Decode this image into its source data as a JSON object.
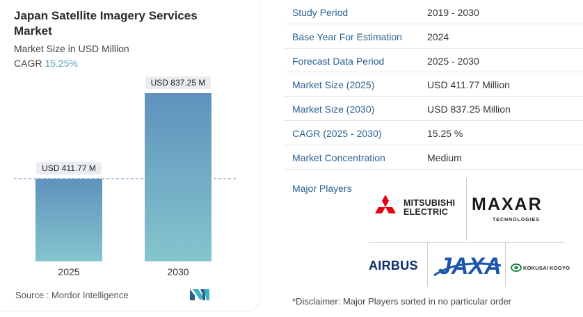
{
  "header": {
    "title": "Japan Satellite Imagery Services Market",
    "subtitle": "Market Size in USD Million",
    "cagr_label": "CAGR",
    "cagr_value": "15.25%"
  },
  "chart_data": {
    "type": "bar",
    "categories": [
      "2025",
      "2030"
    ],
    "values": [
      411.77,
      837.25
    ],
    "data_labels": [
      "USD 411.77 M",
      "USD 837.25 M"
    ],
    "ylabel": "Market Size in USD Million",
    "ylim": [
      0,
      837.25
    ],
    "grid": false,
    "reference_line": "dashed line at 2025 value",
    "colors": {
      "bar_top": "#5f92bd",
      "bar_bottom": "#84c5cd",
      "dashed_line": "#5f92bd"
    }
  },
  "footer": {
    "source": "Source :  Mordor Intelligence"
  },
  "table": [
    {
      "key": "Study Period",
      "value": "2019 - 2030"
    },
    {
      "key": "Base Year For Estimation",
      "value": "2024"
    },
    {
      "key": "Forecast Data Period",
      "value": "2025 - 2030"
    },
    {
      "key": "Market Size (2025)",
      "value": "USD 411.77 Million"
    },
    {
      "key": "Market Size (2030)",
      "value": "USD 837.25 Million"
    },
    {
      "key": "CAGR (2025 - 2030)",
      "value": "15.25 %"
    },
    {
      "key": "Market Concentration",
      "value": "Medium"
    }
  ],
  "major_players": {
    "label": "Major Players",
    "logos": {
      "mitsubishi": "MITSUBISHI ELECTRIC",
      "mitsubishi_line1": "MITSUBISHI",
      "mitsubishi_line2": "ELECTRIC",
      "maxar": "MAXAR",
      "maxar_sub": "TECHNOLOGIES",
      "airbus": "AIRBUS",
      "jaxa": "JAXA",
      "kokusai": "KOKUSAI KOGYO"
    }
  },
  "disclaimer": "*Disclaimer: Major Players sorted in no particular order",
  "colors": {
    "accent": "#2a5f92",
    "cagr": "#5b9fc2",
    "brand_teal": "#37b3c4"
  }
}
